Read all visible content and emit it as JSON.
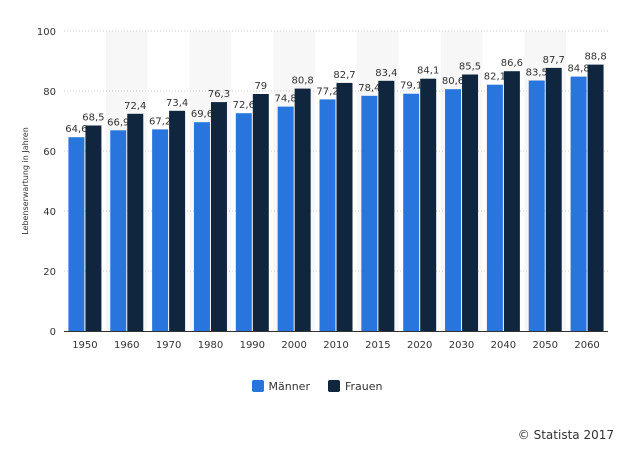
{
  "chart_data": {
    "type": "bar",
    "title": "",
    "xlabel": "",
    "ylabel": "Lebenserwartung in Jahren",
    "ylim": [
      0,
      100
    ],
    "yticks": [
      0,
      20,
      40,
      60,
      80,
      100
    ],
    "grid": true,
    "legend_position": "bottom",
    "categories": [
      "1950",
      "1960",
      "1970",
      "1980",
      "1990",
      "2000",
      "2010",
      "2015",
      "2020",
      "2030",
      "2040",
      "2050",
      "2060"
    ],
    "series": [
      {
        "name": "Männer",
        "color": "#2876dd",
        "values": [
          64.6,
          66.9,
          67.2,
          69.6,
          72.6,
          74.8,
          77.2,
          78.4,
          79.1,
          80.6,
          82.1,
          83.5,
          84.8
        ],
        "labels": [
          "64,6",
          "66,9",
          "67,2",
          "69,6",
          "72,6",
          "74,8",
          "77,2",
          "78,4",
          "79,1",
          "80,6",
          "82,1",
          "83,5",
          "84,8"
        ]
      },
      {
        "name": "Frauen",
        "color": "#10263f",
        "values": [
          68.5,
          72.4,
          73.4,
          76.3,
          79,
          80.8,
          82.7,
          83.4,
          84.1,
          85.5,
          86.6,
          87.7,
          88.8
        ],
        "labels": [
          "68,5",
          "72,4",
          "73,4",
          "76,3",
          "79",
          "80,8",
          "82,7",
          "83,4",
          "84,1",
          "85,5",
          "86,6",
          "87,7",
          "88,8"
        ]
      }
    ]
  },
  "credit": "© Statista 2017"
}
